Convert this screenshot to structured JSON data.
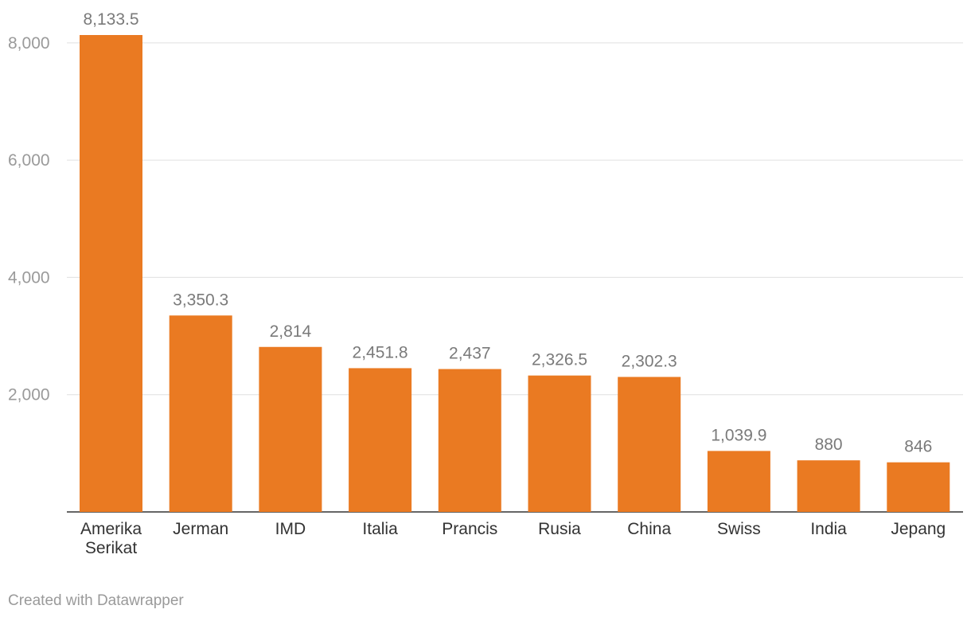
{
  "chart_data": {
    "type": "bar",
    "categories": [
      [
        "Amerika",
        "Serikat"
      ],
      [
        "Jerman"
      ],
      [
        "IMD"
      ],
      [
        "Italia"
      ],
      [
        "Prancis"
      ],
      [
        "Rusia"
      ],
      [
        "China"
      ],
      [
        "Swiss"
      ],
      [
        "India"
      ],
      [
        "Jepang"
      ]
    ],
    "values": [
      8133.5,
      3350.3,
      2814,
      2451.8,
      2437,
      2326.5,
      2302.3,
      1039.9,
      880,
      846
    ],
    "value_labels": [
      "8,133.5",
      "3,350.3",
      "2,814",
      "2,451.8",
      "2,437",
      "2,326.5",
      "2,302.3",
      "1,039.9",
      "880",
      "846"
    ],
    "yticks": [
      2000,
      4000,
      6000,
      8000
    ],
    "ytick_labels": [
      "2,000",
      "4,000",
      "6,000",
      "8,000"
    ],
    "ylim": [
      0,
      8133.5
    ],
    "grid": true,
    "bar_color": "#ea7a22",
    "title": "",
    "xlabel": "",
    "ylabel": ""
  },
  "footer": {
    "credit": "Created with Datawrapper"
  }
}
